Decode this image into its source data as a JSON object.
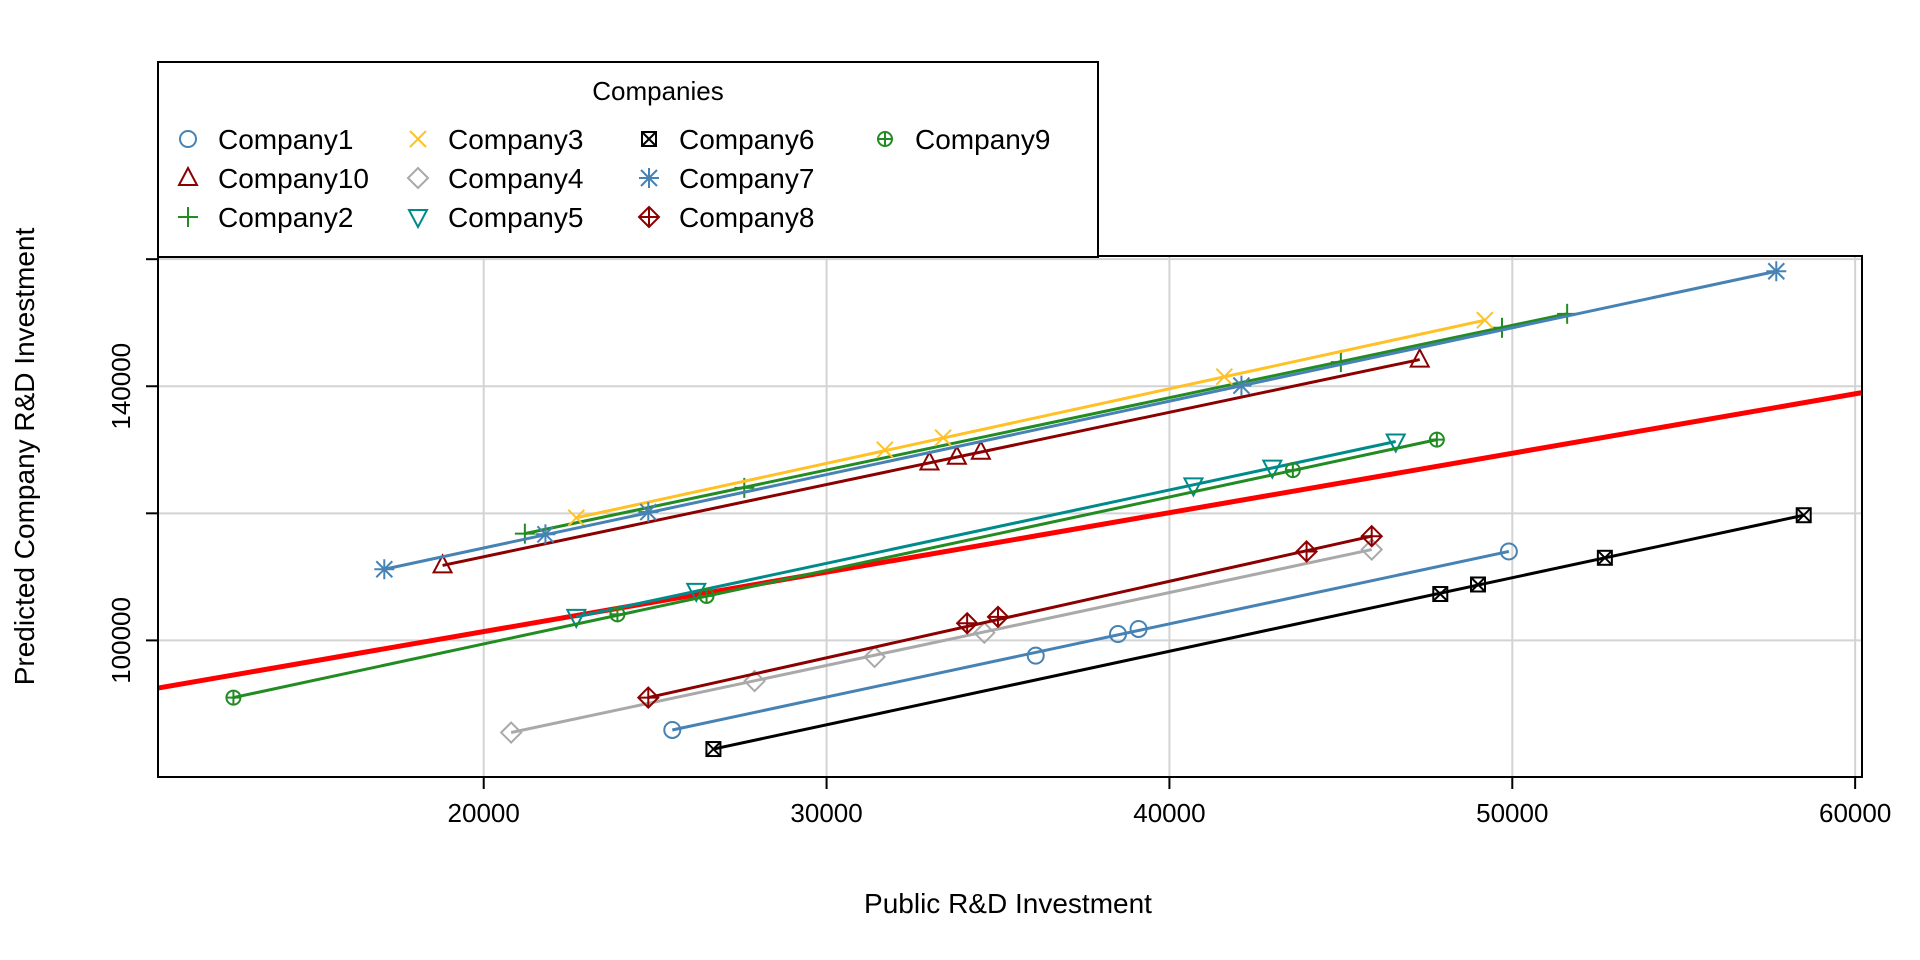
{
  "chart_data": {
    "type": "scatter",
    "title": "",
    "xlabel": "Public R&D Investment",
    "ylabel": "Predicted Company R&D Investment",
    "xlim": [
      10500,
      60200
    ],
    "ylim": [
      78500,
      160500
    ],
    "x_ticks": [
      20000,
      30000,
      40000,
      50000,
      60000
    ],
    "x_tick_labels": [
      "20000",
      "30000",
      "40000",
      "50000",
      "60000"
    ],
    "y_ticks": [
      100000,
      140000
    ],
    "y_tick_labels": [
      "100000",
      "140000"
    ],
    "grid_y": [
      100000,
      120000,
      140000,
      160000
    ],
    "grid": true,
    "legend": {
      "title": "Companies",
      "placement": "top-left, outside plot area above",
      "columns": 4
    },
    "overall_fit": {
      "x": [
        10500,
        60200
      ],
      "y": [
        92500,
        139000
      ],
      "color": "#ff0000"
    },
    "series": [
      {
        "name": "Company1",
        "color": "#4682b4",
        "marker": "circle",
        "x": [
          25500,
          36100,
          38500,
          39100,
          49900
        ],
        "y": [
          85900,
          97600,
          101000,
          101800,
          114000
        ],
        "fit_x": [
          25500,
          49900
        ],
        "fit_y": [
          85900,
          114000
        ]
      },
      {
        "name": "Company10",
        "color": "#8b0000",
        "marker": "triangle-up",
        "x": [
          18800,
          33000,
          33800,
          34500,
          47300
        ],
        "y": [
          111800,
          128000,
          128900,
          129700,
          144200
        ],
        "fit_x": [
          18800,
          47300
        ],
        "fit_y": [
          111800,
          144200
        ]
      },
      {
        "name": "Company2",
        "color": "#228b22",
        "marker": "plus",
        "x": [
          21200,
          27600,
          45000,
          49700,
          51600
        ],
        "y": [
          116800,
          124000,
          143800,
          149200,
          151400
        ],
        "fit_x": [
          21200,
          51600
        ],
        "fit_y": [
          116800,
          151400
        ]
      },
      {
        "name": "Company3",
        "color": "#ffc125",
        "marker": "x",
        "x": [
          22700,
          31700,
          33400,
          41600,
          49200
        ],
        "y": [
          119300,
          130000,
          131900,
          141500,
          150400
        ],
        "fit_x": [
          22700,
          49200
        ],
        "fit_y": [
          119300,
          150400
        ]
      },
      {
        "name": "Company4",
        "color": "#a9a9a9",
        "marker": "diamond",
        "x": [
          20800,
          27900,
          31400,
          34600,
          45900
        ],
        "y": [
          85500,
          93600,
          97400,
          101200,
          114300
        ],
        "fit_x": [
          20800,
          45900
        ],
        "fit_y": [
          85500,
          114300
        ]
      },
      {
        "name": "Company5",
        "color": "#008b8b",
        "marker": "triangle-down",
        "x": [
          22700,
          26200,
          40700,
          43000,
          46600
        ],
        "y": [
          103700,
          107800,
          124400,
          127200,
          131300
        ],
        "fit_x": [
          22700,
          46600
        ],
        "fit_y": [
          103700,
          131300
        ]
      },
      {
        "name": "Company6",
        "color": "#000000",
        "marker": "square-x",
        "x": [
          26700,
          47900,
          49000,
          52700,
          58500
        ],
        "y": [
          82900,
          107300,
          108800,
          113000,
          119700
        ],
        "fit_x": [
          26700,
          58500
        ],
        "fit_y": [
          82900,
          119700
        ]
      },
      {
        "name": "Company7",
        "color": "#4682b4",
        "marker": "asterisk",
        "x": [
          17100,
          21800,
          24800,
          42100,
          57700
        ],
        "y": [
          111200,
          116700,
          120200,
          140100,
          158100
        ],
        "fit_x": [
          17100,
          57700
        ],
        "fit_y": [
          111200,
          158100
        ]
      },
      {
        "name": "Company8",
        "color": "#8b0000",
        "marker": "diamond-plus",
        "x": [
          24800,
          34100,
          35000,
          44000,
          45900
        ],
        "y": [
          91000,
          102700,
          103700,
          114000,
          116400
        ],
        "fit_x": [
          24800,
          45900
        ],
        "fit_y": [
          91000,
          116400
        ]
      },
      {
        "name": "Company9",
        "color": "#228b22",
        "marker": "circle-plus",
        "x": [
          12700,
          23900,
          26500,
          43600,
          47800
        ],
        "y": [
          91000,
          104100,
          107000,
          126800,
          131600
        ],
        "fit_x": [
          12700,
          47800
        ],
        "fit_y": [
          91000,
          131600
        ]
      }
    ]
  }
}
